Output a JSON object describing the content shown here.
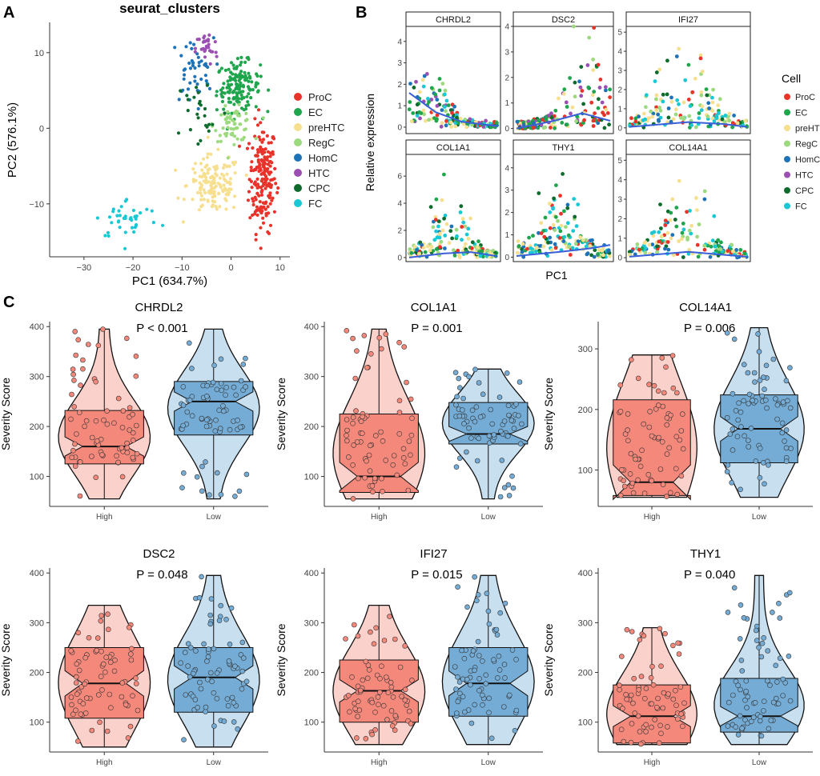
{
  "panel_labels": {
    "a": "A",
    "b": "B",
    "c": "C"
  },
  "colors": {
    "ProC": "#e8332a",
    "EC": "#1fa64c",
    "preHTC": "#f6e08f",
    "RegC": "#9dd97f",
    "HomC": "#1e73b8",
    "HTC": "#9b4fb3",
    "CPC": "#0f6b2d",
    "FC": "#19c8d4",
    "high_fill": "#f4887b",
    "high_violin": "#fbd1cb",
    "low_fill": "#74acd6",
    "low_violin": "#c8dfef",
    "trend": "#3a5fd9"
  },
  "chart_data": [
    {
      "id": "A",
      "type": "scatter",
      "title": "seurat_clusters",
      "xlabel": "PC1 (634.7%)",
      "ylabel": "PC2 (576.1%)",
      "xlim": [
        -37,
        12
      ],
      "ylim": [
        -17,
        14
      ],
      "xticks": [
        -30,
        -20,
        -10,
        0,
        10
      ],
      "yticks": [
        -10,
        0,
        10
      ],
      "legend_position": "right",
      "legend": [
        "ProC",
        "EC",
        "preHTC",
        "RegC",
        "HomC",
        "HTC",
        "CPC",
        "FC"
      ],
      "clusters": [
        {
          "name": "ProC",
          "center": [
            6.5,
            -6.5
          ],
          "spread": [
            2.5,
            6.5
          ],
          "n": 190
        },
        {
          "name": "EC",
          "center": [
            1.5,
            5.5
          ],
          "spread": [
            4.0,
            3.0
          ],
          "n": 150
        },
        {
          "name": "preHTC",
          "center": [
            -3.5,
            -7.5
          ],
          "spread": [
            5.0,
            3.5
          ],
          "n": 140
        },
        {
          "name": "RegC",
          "center": [
            0.5,
            0.5
          ],
          "spread": [
            3.5,
            2.0
          ],
          "n": 60
        },
        {
          "name": "HomC",
          "center": [
            -8.0,
            7.5
          ],
          "spread": [
            4.0,
            4.0
          ],
          "n": 45
        },
        {
          "name": "HTC",
          "center": [
            -5.0,
            10.5
          ],
          "spread": [
            2.0,
            2.0
          ],
          "n": 30
        },
        {
          "name": "CPC",
          "center": [
            -6.0,
            2.0
          ],
          "spread": [
            5.0,
            5.0
          ],
          "n": 25
        },
        {
          "name": "FC",
          "center": [
            -21.0,
            -12.0
          ],
          "spread": [
            6.0,
            2.5
          ],
          "n": 40
        }
      ]
    },
    {
      "id": "B",
      "type": "scatter",
      "xlabel": "PC1",
      "ylabel": "Relative expression",
      "legend_title": "Cell",
      "legend_position": "right",
      "legend": [
        "ProC",
        "EC",
        "preHTC",
        "RegC",
        "HomC",
        "HTC",
        "CPC",
        "FC"
      ],
      "facets": [
        {
          "gene": "CHRDL2",
          "ylim": [
            -0.3,
            4.7
          ],
          "yticks": [
            0,
            1,
            2,
            3,
            4
          ],
          "peak": "left",
          "trend": [
            [
              0,
              1.6
            ],
            [
              0.3,
              0.7
            ],
            [
              0.6,
              0.25
            ],
            [
              1,
              0.05
            ]
          ]
        },
        {
          "gene": "DSC2",
          "ylim": [
            -0.2,
            4.0
          ],
          "yticks": [
            0,
            1,
            2,
            3,
            4
          ],
          "peak": "right",
          "trend": [
            [
              0,
              0.0
            ],
            [
              0.4,
              0.3
            ],
            [
              0.7,
              0.6
            ],
            [
              1,
              0.3
            ]
          ]
        },
        {
          "gene": "IFI27",
          "ylim": [
            -0.3,
            5.3
          ],
          "yticks": [
            0,
            1,
            2,
            3,
            4,
            5
          ],
          "peak": "middle",
          "trend": [
            [
              0,
              0.05
            ],
            [
              0.5,
              0.3
            ],
            [
              0.8,
              0.2
            ],
            [
              1,
              0.05
            ]
          ]
        },
        {
          "gene": "COL1A1",
          "ylim": [
            -0.3,
            7.6
          ],
          "yticks": [
            0,
            2,
            4,
            6
          ],
          "peak": "middle",
          "trend": [
            [
              0,
              0.0
            ],
            [
              0.4,
              0.3
            ],
            [
              0.7,
              0.4
            ],
            [
              1,
              0.1
            ]
          ]
        },
        {
          "gene": "THY1",
          "ylim": [
            -0.2,
            4.6
          ],
          "yticks": [
            0,
            1,
            2,
            3,
            4
          ],
          "peak": "middle",
          "trend": [
            [
              0,
              0.05
            ],
            [
              0.5,
              0.25
            ],
            [
              0.8,
              0.4
            ],
            [
              1,
              0.55
            ]
          ]
        },
        {
          "gene": "COL14A1",
          "ylim": [
            -0.2,
            5.3
          ],
          "yticks": [
            0,
            1,
            2,
            3,
            4,
            5
          ],
          "peak": "middle",
          "trend": [
            [
              0,
              0.05
            ],
            [
              0.5,
              0.3
            ],
            [
              0.8,
              0.15
            ],
            [
              1,
              0.05
            ]
          ]
        }
      ]
    },
    {
      "id": "C",
      "type": "box",
      "ylabel": "Severity Score",
      "categories": [
        "High",
        "Low"
      ],
      "plots": [
        {
          "gene": "CHRDL2",
          "pvalue": "P < 0.001",
          "ylim": [
            40,
            410
          ],
          "yticks": [
            100,
            200,
            300,
            400
          ],
          "high": {
            "min": 55,
            "q1": 125,
            "median": 160,
            "q3": 232,
            "max": 395
          },
          "low": {
            "min": 55,
            "q1": 183,
            "median": 250,
            "q3": 290,
            "max": 395
          }
        },
        {
          "gene": "COL1A1",
          "pvalue": "P = 0.001",
          "ylim": [
            40,
            410
          ],
          "yticks": [
            100,
            200,
            300,
            400
          ],
          "high": {
            "min": 55,
            "q1": 68,
            "median": 100,
            "q3": 225,
            "max": 395
          },
          "low": {
            "min": 55,
            "q1": 165,
            "median": 185,
            "q3": 248,
            "max": 315
          }
        },
        {
          "gene": "COL14A1",
          "pvalue": "P = 0.006",
          "ylim": [
            40,
            345
          ],
          "yticks": [
            100,
            200,
            300
          ],
          "high": {
            "min": 55,
            "q1": 58,
            "median": 80,
            "q3": 216,
            "max": 290
          },
          "low": {
            "min": 55,
            "q1": 112,
            "median": 168,
            "q3": 224,
            "max": 335
          }
        },
        {
          "gene": "DSC2",
          "pvalue": "P = 0.048",
          "ylim": [
            40,
            410
          ],
          "yticks": [
            100,
            200,
            300,
            400
          ],
          "high": {
            "min": 50,
            "q1": 108,
            "median": 178,
            "q3": 250,
            "max": 335
          },
          "low": {
            "min": 50,
            "q1": 120,
            "median": 190,
            "q3": 250,
            "max": 395
          }
        },
        {
          "gene": "IFI27",
          "pvalue": "P = 0.015",
          "ylim": [
            40,
            410
          ],
          "yticks": [
            100,
            200,
            300,
            400
          ],
          "high": {
            "min": 55,
            "q1": 100,
            "median": 163,
            "q3": 225,
            "max": 335
          },
          "low": {
            "min": 55,
            "q1": 112,
            "median": 178,
            "q3": 250,
            "max": 395
          }
        },
        {
          "gene": "THY1",
          "pvalue": "P = 0.040",
          "ylim": [
            40,
            410
          ],
          "yticks": [
            100,
            200,
            300,
            400
          ],
          "high": {
            "min": 55,
            "q1": 58,
            "median": 112,
            "q3": 175,
            "max": 290
          },
          "low": {
            "min": 55,
            "q1": 80,
            "median": 112,
            "q3": 188,
            "max": 395
          }
        }
      ]
    }
  ]
}
